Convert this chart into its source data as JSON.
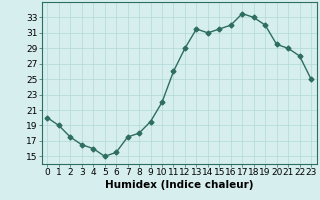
{
  "x": [
    0,
    1,
    2,
    3,
    4,
    5,
    6,
    7,
    8,
    9,
    10,
    11,
    12,
    13,
    14,
    15,
    16,
    17,
    18,
    19,
    20,
    21,
    22,
    23
  ],
  "y": [
    20,
    19,
    17.5,
    16.5,
    16,
    15,
    15.5,
    17.5,
    18,
    19.5,
    22,
    26,
    29,
    31.5,
    31,
    31.5,
    32,
    33.5,
    33,
    32,
    29.5,
    29,
    28,
    25
  ],
  "line_color": "#2d6e5e",
  "marker": "D",
  "marker_size": 2.5,
  "bg_color": "#d7eeee",
  "grid_color": "#b0d8d8",
  "xlabel": "Humidex (Indice chaleur)",
  "ylim": [
    14,
    35
  ],
  "xlim": [
    -0.5,
    23.5
  ],
  "yticks": [
    15,
    17,
    19,
    21,
    23,
    25,
    27,
    29,
    31,
    33
  ],
  "xticks": [
    0,
    1,
    2,
    3,
    4,
    5,
    6,
    7,
    8,
    9,
    10,
    11,
    12,
    13,
    14,
    15,
    16,
    17,
    18,
    19,
    20,
    21,
    22,
    23
  ],
  "xlabel_fontsize": 7.5,
  "tick_fontsize": 6.5,
  "line_width": 1.0
}
